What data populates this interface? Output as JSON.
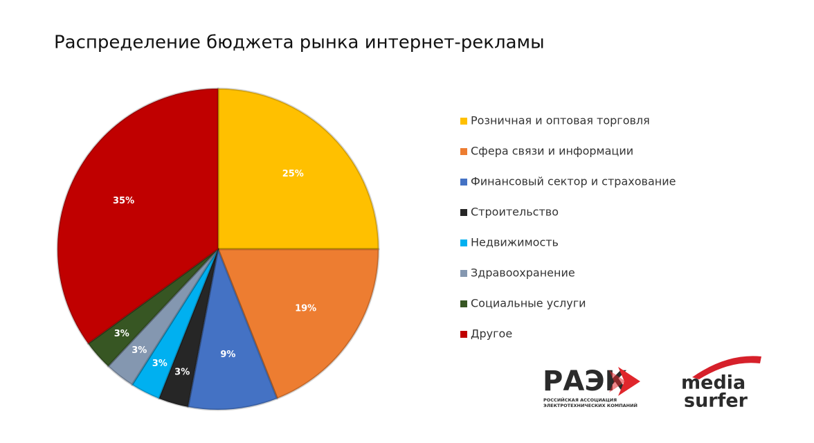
{
  "chart_data": {
    "type": "pie",
    "title": "Распределение бюджета рынка интернет-рекламы",
    "categories": [
      "Розничная и оптовая торговля",
      "Сфера связи и информации",
      "Финансовый сектор и страхование",
      "Строительство",
      "Недвижимость",
      "Здравоохранение",
      "Социальные услуги",
      "Другое"
    ],
    "values": [
      25,
      19,
      9,
      3,
      3,
      3,
      3,
      35
    ],
    "value_labels": [
      "25%",
      "19%",
      "9%",
      "3%",
      "3%",
      "3%",
      "3%",
      "35%"
    ],
    "colors": [
      "#ffc000",
      "#ed7d31",
      "#4472c4",
      "#262626",
      "#00b0f0",
      "#8497b0",
      "#375623",
      "#c00000"
    ],
    "legend": "right"
  },
  "logos": {
    "raek": "РАЭК",
    "raek_subtitle_1": "РОССИЙСКАЯ АССОЦИАЦИЯ",
    "raek_subtitle_2": "ЭЛЕКТРОТЕХНИЧЕСКИХ КОМПАНИЙ",
    "media": "media",
    "surfer": "surfer"
  }
}
